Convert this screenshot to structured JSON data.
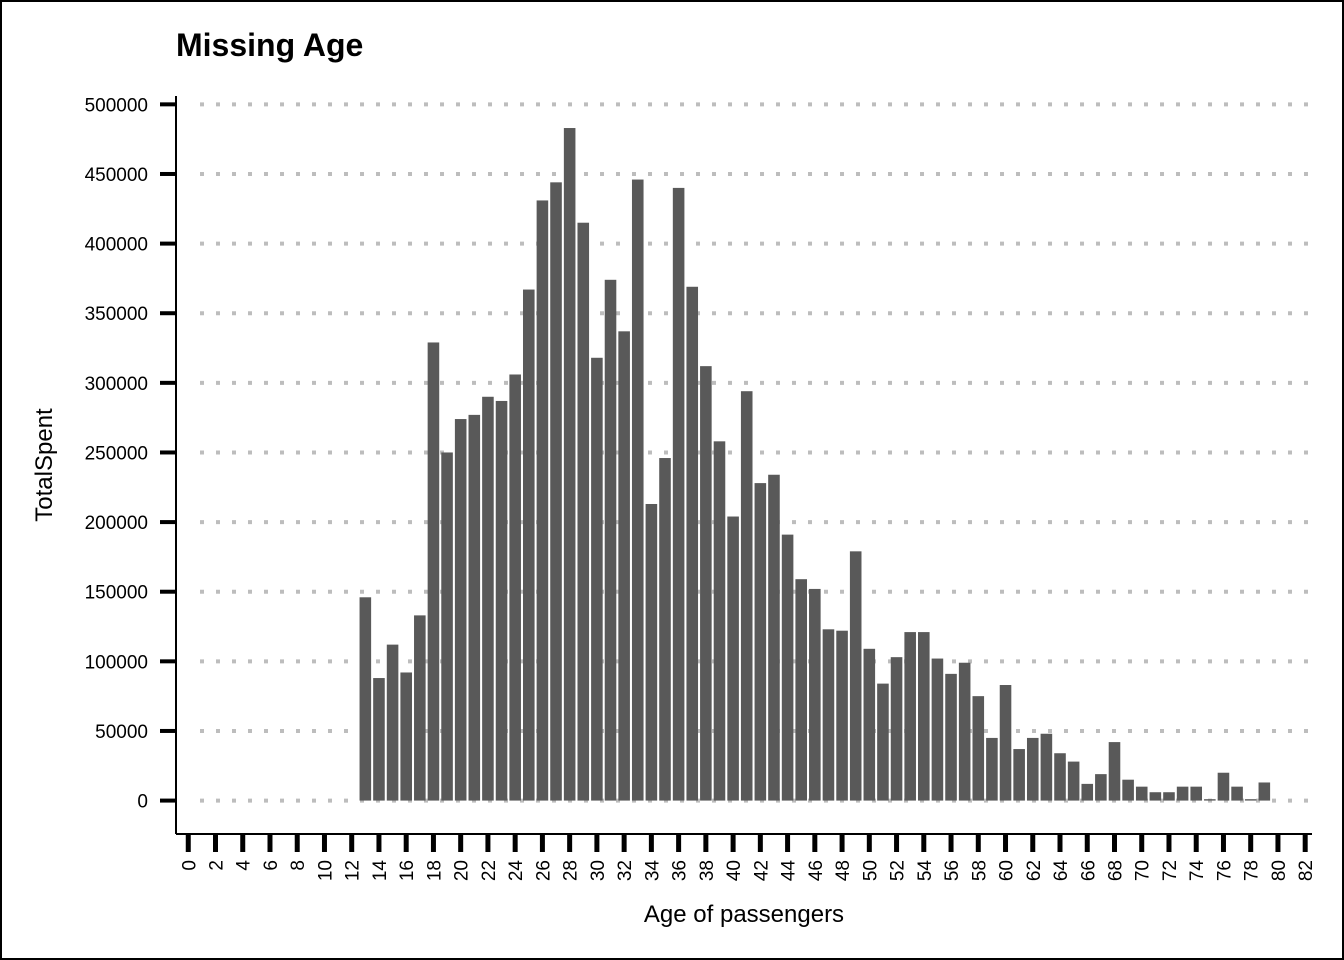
{
  "chart_data": {
    "type": "bar",
    "title": "Missing Age",
    "xlabel": "Age of passengers",
    "ylabel": "TotalSpent",
    "xlim": [
      -0.9,
      82.5
    ],
    "ylim": [
      -24000,
      506000
    ],
    "grid": "horizontal dotted",
    "legend": "none",
    "colors": {
      "bar": "#595959",
      "grid": "#bdbdbd",
      "axis": "#000000",
      "background": "#ffffff"
    },
    "y_ticks": [
      0,
      50000,
      100000,
      150000,
      200000,
      250000,
      300000,
      350000,
      400000,
      450000,
      500000
    ],
    "y_tick_labels": [
      "0",
      "50000",
      "100000",
      "150000",
      "200000",
      "250000",
      "300000",
      "350000",
      "400000",
      "450000",
      "500000"
    ],
    "x_ticks": [
      0,
      2,
      4,
      6,
      8,
      10,
      12,
      14,
      16,
      18,
      20,
      22,
      24,
      26,
      28,
      30,
      32,
      34,
      36,
      38,
      40,
      42,
      44,
      46,
      48,
      50,
      52,
      54,
      56,
      58,
      60,
      62,
      64,
      66,
      68,
      70,
      72,
      74,
      76,
      78,
      80,
      82
    ],
    "x_tick_labels": [
      "0",
      "2",
      "4",
      "6",
      "8",
      "10",
      "12",
      "14",
      "16",
      "18",
      "20",
      "22",
      "24",
      "26",
      "28",
      "30",
      "32",
      "34",
      "36",
      "38",
      "40",
      "42",
      "44",
      "46",
      "48",
      "50",
      "52",
      "54",
      "56",
      "58",
      "60",
      "62",
      "64",
      "66",
      "68",
      "70",
      "72",
      "74",
      "76",
      "78",
      "80",
      "82"
    ],
    "categories": [
      0,
      1,
      2,
      3,
      4,
      5,
      6,
      7,
      8,
      9,
      10,
      11,
      12,
      13,
      14,
      15,
      16,
      17,
      18,
      19,
      20,
      21,
      22,
      23,
      24,
      25,
      26,
      27,
      28,
      29,
      30,
      31,
      32,
      33,
      34,
      35,
      36,
      37,
      38,
      39,
      40,
      41,
      42,
      43,
      44,
      45,
      46,
      47,
      48,
      49,
      50,
      51,
      52,
      53,
      54,
      55,
      56,
      57,
      58,
      59,
      60,
      61,
      62,
      63,
      64,
      65,
      66,
      67,
      68,
      69,
      70,
      71,
      72,
      73,
      74,
      75,
      76,
      77,
      78,
      79
    ],
    "values": [
      0,
      0,
      0,
      0,
      0,
      0,
      0,
      0,
      0,
      0,
      0,
      0,
      0,
      146000,
      88000,
      112000,
      92000,
      133000,
      329000,
      250000,
      274000,
      277000,
      290000,
      287000,
      306000,
      367000,
      431000,
      444000,
      483000,
      415000,
      318000,
      374000,
      337000,
      446000,
      213000,
      246000,
      440000,
      369000,
      312000,
      258000,
      204000,
      294000,
      228000,
      234000,
      191000,
      159000,
      152000,
      123000,
      122000,
      179000,
      109000,
      84000,
      103000,
      121000,
      121000,
      102000,
      91000,
      99000,
      75000,
      45000,
      83000,
      37000,
      45000,
      48000,
      34000,
      28000,
      12000,
      19000,
      42000,
      15000,
      10000,
      6000,
      6000,
      10000,
      10000,
      1000,
      20000,
      10000,
      1000,
      13000
    ]
  }
}
